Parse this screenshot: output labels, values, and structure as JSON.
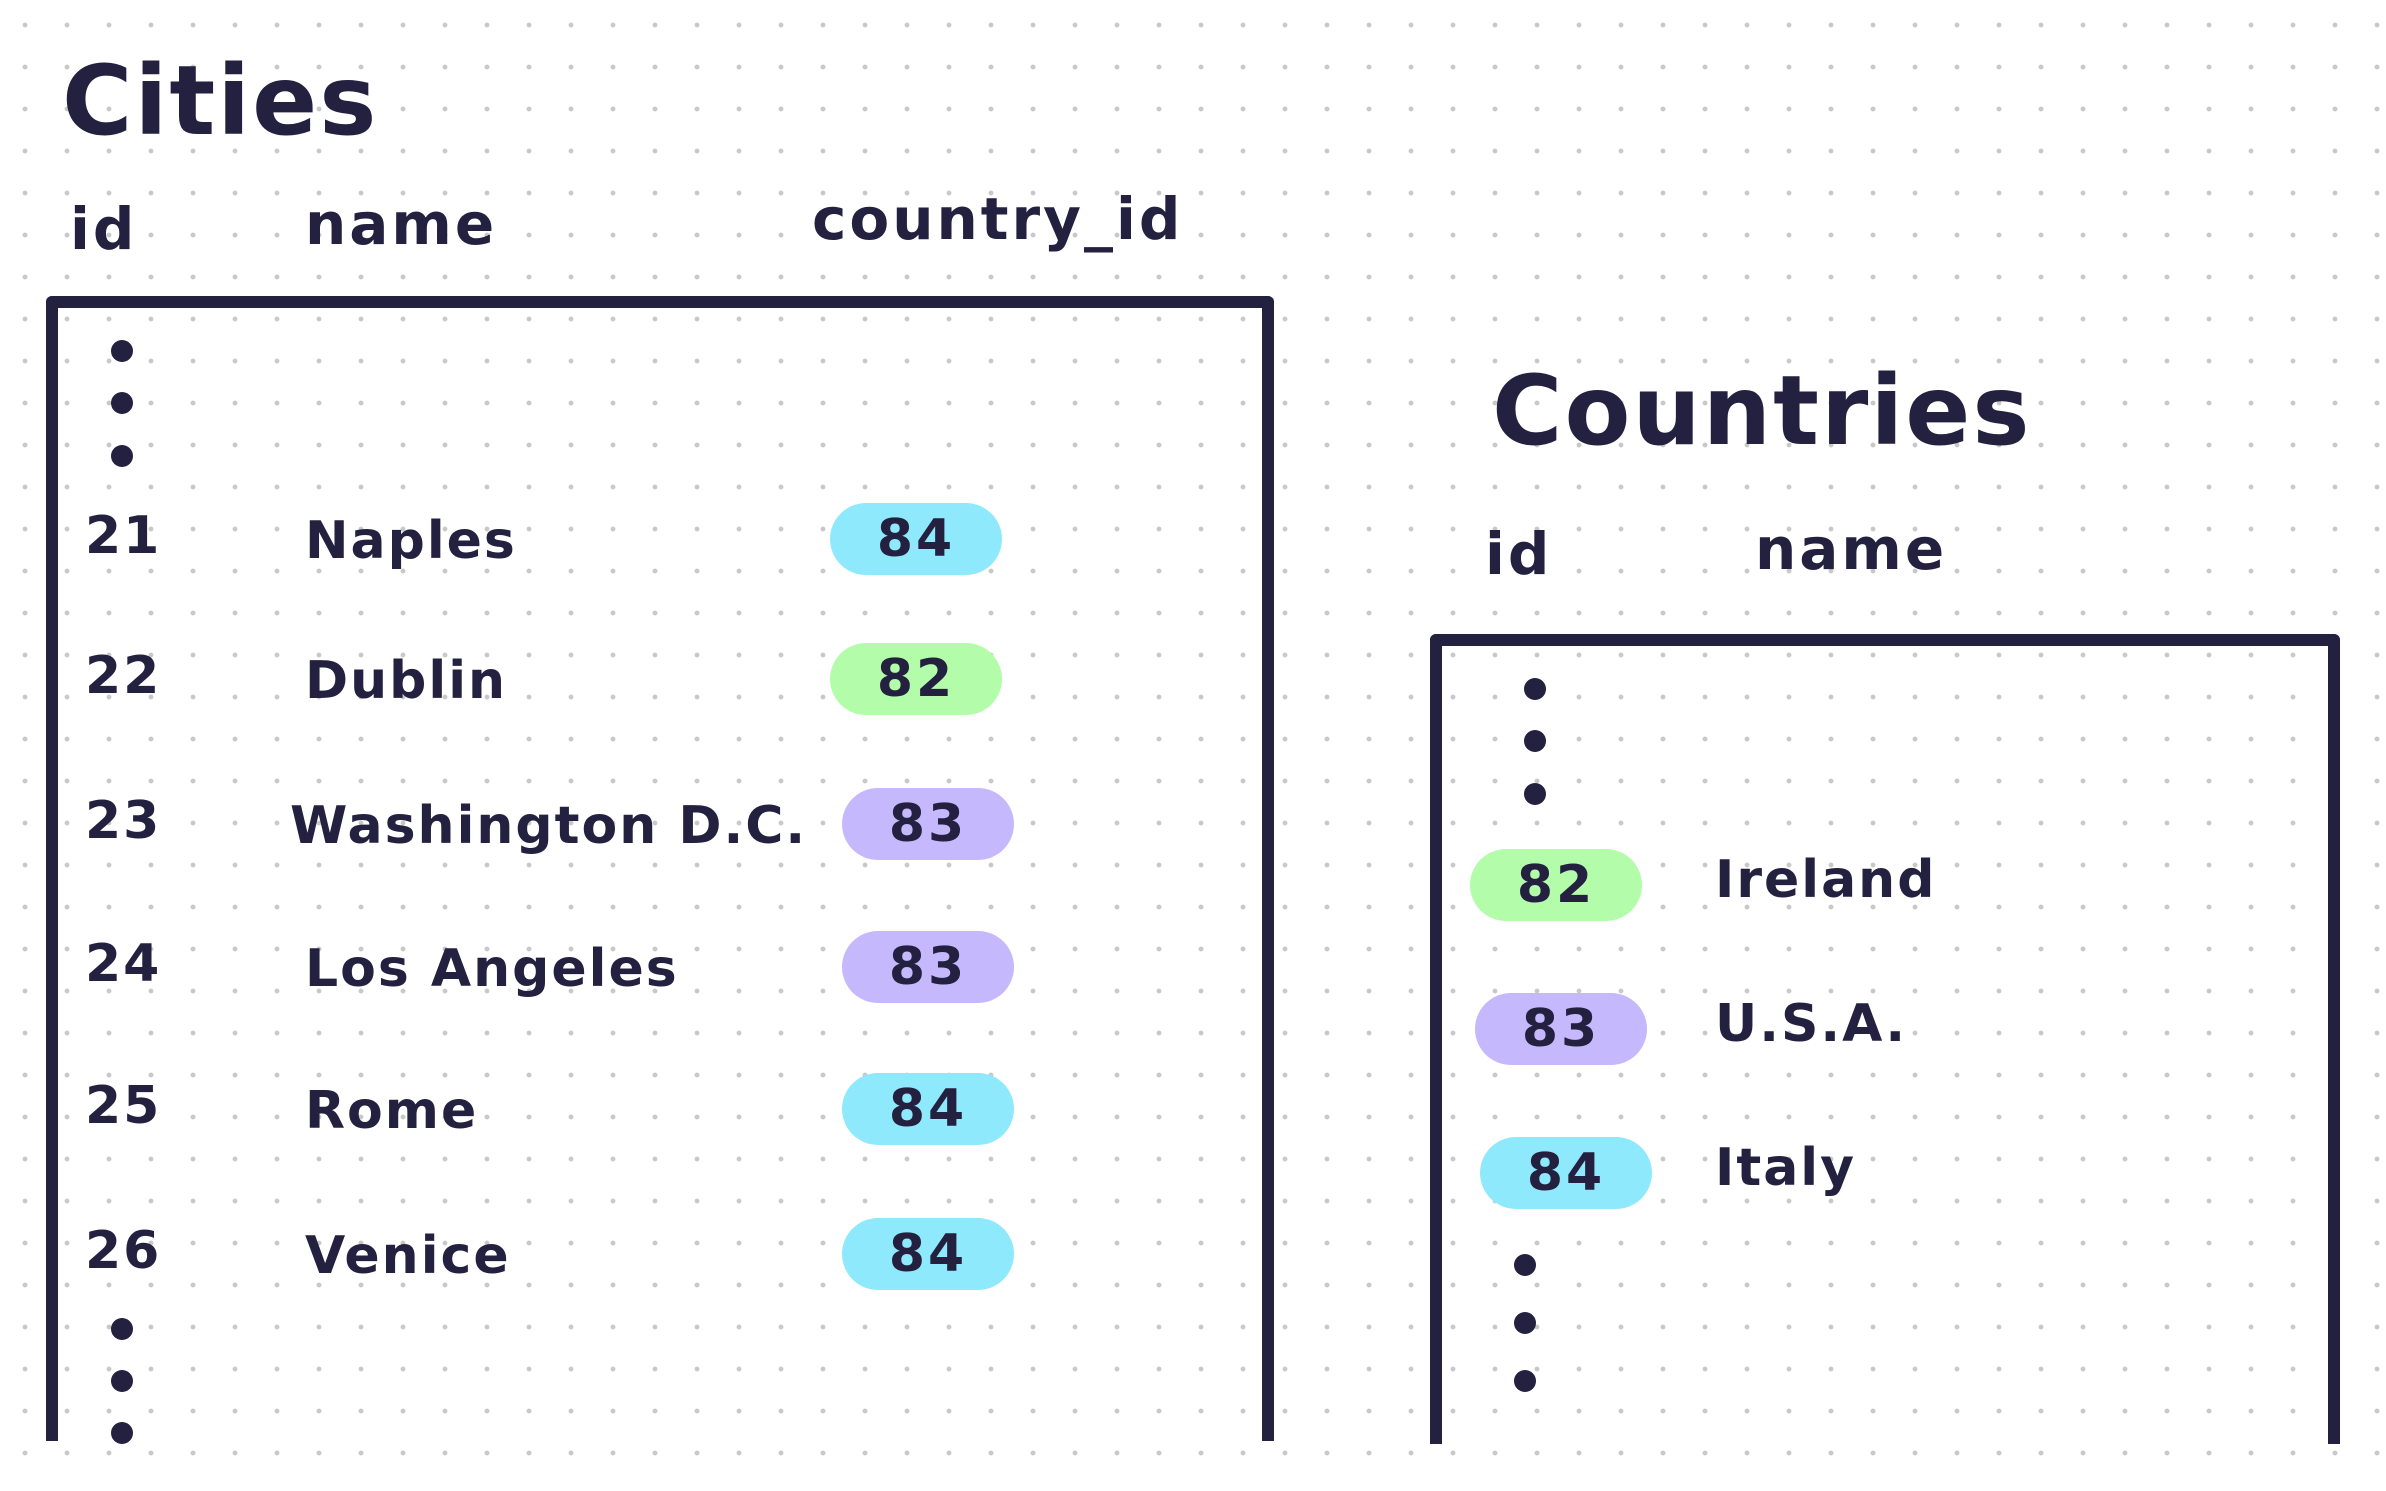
{
  "colors": {
    "ink": "#24203f",
    "country_82": "#b2fcaa",
    "country_83": "#c5b8fc",
    "country_84": "#8fe9fc"
  },
  "cities": {
    "title": "Cities",
    "headers": {
      "id": "id",
      "name": "name",
      "country_id": "country_id"
    },
    "rows": [
      {
        "id": "21",
        "name": "Naples",
        "country_id": "84"
      },
      {
        "id": "22",
        "name": "Dublin",
        "country_id": "82"
      },
      {
        "id": "23",
        "name": "Washington D.C.",
        "country_id": "83"
      },
      {
        "id": "24",
        "name": "Los Angeles",
        "country_id": "83"
      },
      {
        "id": "25",
        "name": "Rome",
        "country_id": "84"
      },
      {
        "id": "26",
        "name": "Venice",
        "country_id": "84"
      }
    ]
  },
  "countries": {
    "title": "Countries",
    "headers": {
      "id": "id",
      "name": "name"
    },
    "rows": [
      {
        "id": "82",
        "name": "Ireland"
      },
      {
        "id": "83",
        "name": "U.S.A."
      },
      {
        "id": "84",
        "name": "Italy"
      }
    ]
  }
}
